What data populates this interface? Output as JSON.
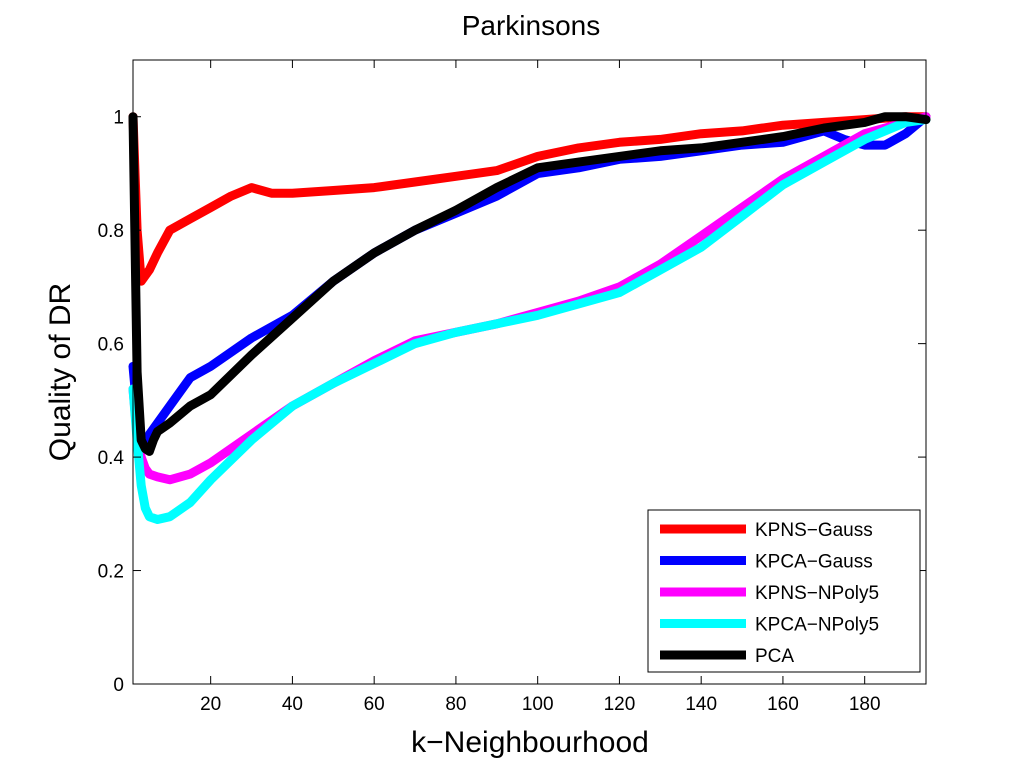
{
  "chart_data": {
    "type": "line",
    "title": "Parkinsons",
    "xlabel": "k−Neighbourhood",
    "ylabel": "Quality of DR",
    "xlim": [
      1,
      195
    ],
    "ylim": [
      0,
      1.1
    ],
    "xticks": [
      20,
      40,
      60,
      80,
      100,
      120,
      140,
      160,
      180
    ],
    "xtick_labels": [
      "20",
      "40",
      "60",
      "80",
      "100",
      "120",
      "140",
      "160",
      "180"
    ],
    "yticks": [
      0,
      0.2,
      0.4,
      0.6,
      0.8,
      1
    ],
    "ytick_labels": [
      "0",
      "0.2",
      "0.4",
      "0.6",
      "0.8",
      "1"
    ],
    "grid": false,
    "legend_position": "bottom-right",
    "series": [
      {
        "name": "KPNS−Gauss",
        "color": "#ff0000",
        "x": [
          1,
          2,
          3,
          5,
          7,
          10,
          15,
          20,
          25,
          30,
          35,
          40,
          50,
          60,
          70,
          80,
          90,
          100,
          110,
          120,
          130,
          140,
          150,
          160,
          170,
          180,
          190,
          195
        ],
        "y": [
          1.0,
          0.8,
          0.71,
          0.73,
          0.76,
          0.8,
          0.82,
          0.84,
          0.86,
          0.875,
          0.865,
          0.865,
          0.87,
          0.875,
          0.885,
          0.895,
          0.905,
          0.93,
          0.945,
          0.955,
          0.96,
          0.97,
          0.975,
          0.985,
          0.99,
          0.995,
          1.0,
          1.0
        ]
      },
      {
        "name": "KPCA−Gauss",
        "color": "#0000ff",
        "x": [
          1,
          2,
          3,
          4,
          5,
          7,
          10,
          15,
          20,
          30,
          40,
          50,
          60,
          70,
          80,
          90,
          100,
          110,
          120,
          130,
          140,
          150,
          160,
          170,
          175,
          180,
          185,
          190,
          195
        ],
        "y": [
          0.56,
          0.48,
          0.43,
          0.42,
          0.44,
          0.46,
          0.49,
          0.54,
          0.56,
          0.61,
          0.65,
          0.71,
          0.76,
          0.8,
          0.83,
          0.86,
          0.9,
          0.91,
          0.925,
          0.93,
          0.94,
          0.95,
          0.955,
          0.975,
          0.96,
          0.95,
          0.95,
          0.97,
          1.0
        ]
      },
      {
        "name": "KPNS−NPoly5",
        "color": "#ff00ff",
        "x": [
          1,
          2,
          3,
          4,
          5,
          7,
          10,
          15,
          20,
          30,
          40,
          50,
          60,
          70,
          80,
          90,
          100,
          110,
          120,
          130,
          140,
          150,
          160,
          170,
          180,
          190,
          195
        ],
        "y": [
          0.52,
          0.44,
          0.4,
          0.38,
          0.37,
          0.365,
          0.36,
          0.37,
          0.39,
          0.44,
          0.49,
          0.53,
          0.57,
          0.605,
          0.62,
          0.635,
          0.655,
          0.675,
          0.7,
          0.74,
          0.79,
          0.84,
          0.89,
          0.93,
          0.97,
          0.99,
          1.0
        ]
      },
      {
        "name": "KPCA−NPoly5",
        "color": "#00ffff",
        "x": [
          1,
          2,
          3,
          4,
          5,
          7,
          10,
          15,
          20,
          30,
          40,
          50,
          60,
          70,
          80,
          90,
          100,
          110,
          120,
          130,
          140,
          150,
          160,
          170,
          180,
          190,
          195
        ],
        "y": [
          0.52,
          0.43,
          0.35,
          0.31,
          0.295,
          0.29,
          0.295,
          0.32,
          0.36,
          0.43,
          0.49,
          0.53,
          0.565,
          0.6,
          0.62,
          0.635,
          0.65,
          0.67,
          0.69,
          0.73,
          0.77,
          0.825,
          0.88,
          0.92,
          0.96,
          0.99,
          0.995
        ]
      },
      {
        "name": "PCA",
        "color": "#000000",
        "x": [
          1,
          2,
          3,
          4,
          5,
          6,
          7,
          10,
          15,
          20,
          30,
          40,
          50,
          60,
          70,
          80,
          90,
          100,
          110,
          120,
          130,
          140,
          150,
          160,
          170,
          180,
          185,
          190,
          195
        ],
        "y": [
          1.0,
          0.55,
          0.43,
          0.415,
          0.41,
          0.43,
          0.445,
          0.46,
          0.49,
          0.51,
          0.58,
          0.645,
          0.71,
          0.76,
          0.8,
          0.835,
          0.875,
          0.91,
          0.92,
          0.93,
          0.94,
          0.945,
          0.955,
          0.965,
          0.98,
          0.99,
          1.0,
          1.0,
          0.995
        ]
      }
    ]
  }
}
